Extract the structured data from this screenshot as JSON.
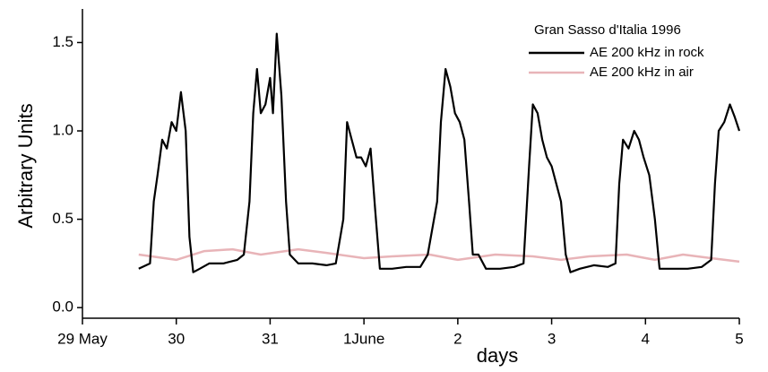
{
  "chart_data": {
    "type": "line",
    "y_label": "Arbitrary Units",
    "x_label": "days",
    "legend_title": "Gran Sasso d'Italia 1996",
    "xlim": [
      0,
      7
    ],
    "ylim": [
      -0.06,
      1.69
    ],
    "xticks": [
      {
        "value": 0,
        "label": "29 May"
      },
      {
        "value": 1,
        "label": "30"
      },
      {
        "value": 2,
        "label": "31"
      },
      {
        "value": 3,
        "label": "1June"
      },
      {
        "value": 4,
        "label": "2"
      },
      {
        "value": 5,
        "label": "3"
      },
      {
        "value": 6,
        "label": "4"
      },
      {
        "value": 7,
        "label": "5"
      }
    ],
    "yticks": [
      {
        "value": 0,
        "label": "0.0"
      },
      0.5,
      {
        "value": 1,
        "label": "1.0"
      },
      1.5
    ],
    "legend": "upper right",
    "series": [
      {
        "name": "AE 200 kHz in rock",
        "color": "#000000",
        "x": [
          0.6,
          0.72,
          0.76,
          0.8,
          0.85,
          0.9,
          0.95,
          1.0,
          1.05,
          1.1,
          1.14,
          1.18,
          1.25,
          1.35,
          1.5,
          1.65,
          1.72,
          1.78,
          1.82,
          1.86,
          1.9,
          1.95,
          2.0,
          2.03,
          2.07,
          2.12,
          2.17,
          2.21,
          2.3,
          2.45,
          2.6,
          2.7,
          2.78,
          2.82,
          2.87,
          2.92,
          2.97,
          3.02,
          3.07,
          3.12,
          3.17,
          3.3,
          3.45,
          3.6,
          3.68,
          3.78,
          3.82,
          3.87,
          3.92,
          3.97,
          4.02,
          4.07,
          4.12,
          4.16,
          4.22,
          4.3,
          4.45,
          4.6,
          4.7,
          4.76,
          4.8,
          4.85,
          4.9,
          4.95,
          5.0,
          5.05,
          5.1,
          5.15,
          5.2,
          5.3,
          5.45,
          5.6,
          5.68,
          5.72,
          5.76,
          5.82,
          5.88,
          5.93,
          5.98,
          6.04,
          6.1,
          6.15,
          6.3,
          6.45,
          6.6,
          6.7,
          6.74,
          6.78,
          6.84,
          6.9,
          6.95,
          7.0
        ],
        "values": [
          0.22,
          0.25,
          0.6,
          0.75,
          0.95,
          0.9,
          1.05,
          1.0,
          1.22,
          1.0,
          0.4,
          0.2,
          0.22,
          0.25,
          0.25,
          0.27,
          0.3,
          0.6,
          1.1,
          1.35,
          1.1,
          1.15,
          1.3,
          1.1,
          1.55,
          1.2,
          0.6,
          0.3,
          0.25,
          0.25,
          0.24,
          0.25,
          0.5,
          1.05,
          0.95,
          0.85,
          0.85,
          0.8,
          0.9,
          0.55,
          0.22,
          0.22,
          0.23,
          0.23,
          0.3,
          0.6,
          1.05,
          1.35,
          1.25,
          1.1,
          1.05,
          0.95,
          0.6,
          0.3,
          0.3,
          0.22,
          0.22,
          0.23,
          0.25,
          0.8,
          1.15,
          1.1,
          0.95,
          0.85,
          0.8,
          0.7,
          0.6,
          0.3,
          0.2,
          0.22,
          0.24,
          0.23,
          0.25,
          0.7,
          0.95,
          0.9,
          1.0,
          0.95,
          0.85,
          0.75,
          0.5,
          0.22,
          0.22,
          0.22,
          0.23,
          0.27,
          0.7,
          1.0,
          1.05,
          1.15,
          1.08,
          1.0
        ]
      },
      {
        "name": "AE 200 kHz in air",
        "color": "#e8b4b8",
        "x": [
          0.6,
          1.0,
          1.3,
          1.6,
          1.9,
          2.3,
          2.6,
          3.0,
          3.3,
          3.7,
          4.0,
          4.4,
          4.8,
          5.1,
          5.4,
          5.8,
          6.1,
          6.4,
          6.7,
          7.0
        ],
        "values": [
          0.3,
          0.27,
          0.32,
          0.33,
          0.3,
          0.33,
          0.31,
          0.28,
          0.29,
          0.3,
          0.27,
          0.3,
          0.29,
          0.27,
          0.29,
          0.3,
          0.27,
          0.3,
          0.28,
          0.26
        ]
      }
    ]
  }
}
